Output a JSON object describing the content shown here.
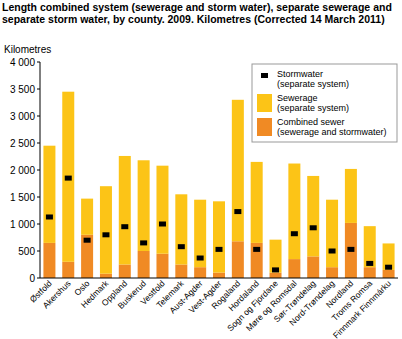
{
  "chart_data": {
    "type": "bar",
    "stacked": true,
    "title": "Length combined system (sewerage and storm water), separate sewerage and separate storm water, by county. 2009. Kilometres (Corrected 14 March 2011)",
    "y_label": "Kilometres",
    "categories": [
      "Østfold",
      "Akershus",
      "Oslo",
      "Hedmark",
      "Oppland",
      "Buskerud",
      "Vestfold",
      "Telemark",
      "Aust-Agder",
      "Vest-Agder",
      "Rogaland",
      "Hordaland",
      "Sogn og Fjordane",
      "Møre og Romsdal",
      "Sør-Trøndelag",
      "Nord-Trøndelag",
      "Nordland",
      "Troms Romsa",
      "Finnmark Finnmárku"
    ],
    "series": [
      {
        "name": "Combined sewer (sewerage and stormwater)",
        "type": "bar",
        "color": "#f08a24",
        "values": [
          650,
          300,
          800,
          80,
          250,
          500,
          450,
          250,
          200,
          100,
          680,
          650,
          100,
          350,
          400,
          200,
          1020,
          200,
          150
        ]
      },
      {
        "name": "Sewerage (separate system)",
        "type": "bar",
        "color": "#fcc417",
        "values": [
          1800,
          3150,
          670,
          1620,
          2010,
          1680,
          1630,
          1300,
          1250,
          1320,
          2620,
          1500,
          610,
          1770,
          1490,
          1250,
          1000,
          760,
          490
        ]
      },
      {
        "name": "Stormwater (separate system)",
        "type": "scatter",
        "marker": "square",
        "color": "#000000",
        "values": [
          1130,
          1850,
          700,
          800,
          950,
          650,
          1000,
          580,
          370,
          530,
          1230,
          530,
          150,
          820,
          930,
          500,
          530,
          270,
          200
        ]
      }
    ],
    "ylim": [
      0,
      4000
    ],
    "yticks": [
      0,
      {
        "value": 500,
        "label": "500"
      },
      {
        "value": 1000,
        "label": "1 000"
      },
      {
        "value": 1500,
        "label": "1 500"
      },
      {
        "value": 2000,
        "label": "2 000"
      },
      {
        "value": 2500,
        "label": "2 500"
      },
      {
        "value": 3000,
        "label": "3 000"
      },
      {
        "value": 3500,
        "label": "3 500"
      },
      {
        "value": 4000,
        "label": "4 000"
      }
    ],
    "grid": false,
    "legend": "upper right"
  }
}
